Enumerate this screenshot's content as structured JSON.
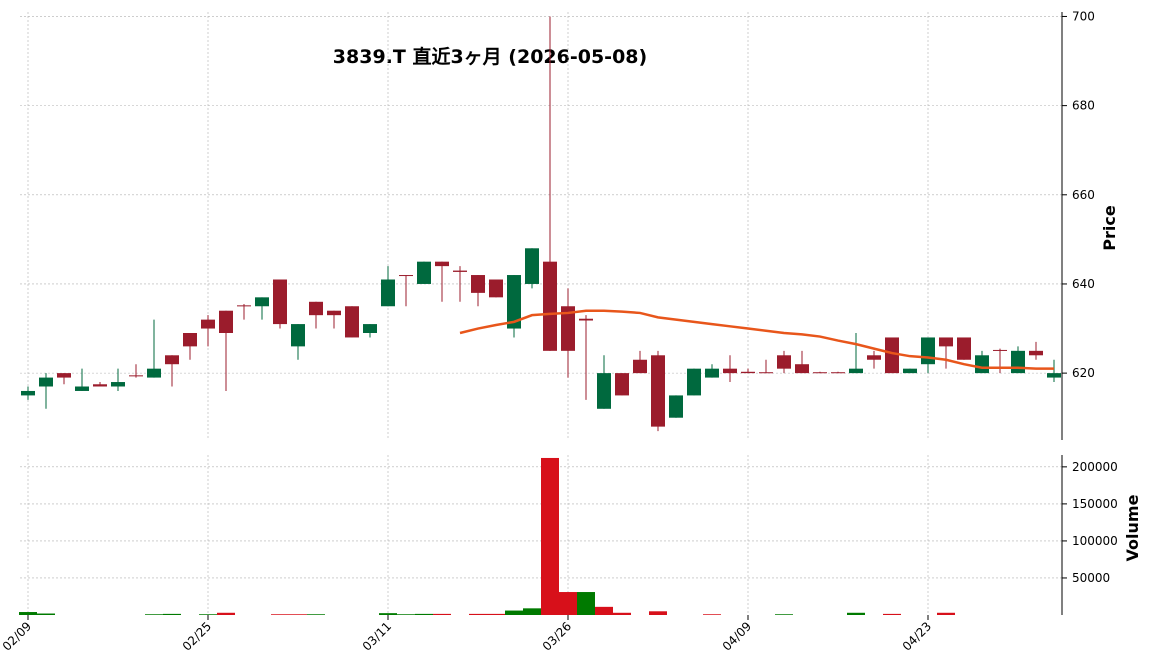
{
  "chart_data": {
    "type": "candlestick",
    "title": "3839.T  直近3ヶ月  (2026-05-08)",
    "categories": [
      "02/09",
      null,
      null,
      null,
      null,
      null,
      null,
      null,
      null,
      null,
      "02/25",
      null,
      null,
      null,
      null,
      null,
      null,
      null,
      null,
      null,
      "03/11",
      null,
      null,
      null,
      null,
      null,
      null,
      null,
      null,
      null,
      "03/26",
      null,
      null,
      null,
      null,
      null,
      null,
      null,
      null,
      null,
      "04/09",
      null,
      null,
      null,
      null,
      null,
      null,
      null,
      null,
      null,
      "04/23",
      null,
      null,
      null,
      null,
      null,
      null,
      null
    ],
    "open": [
      615,
      617,
      620,
      616,
      617.5,
      617,
      619.5,
      619,
      624,
      629,
      632,
      634,
      635.2,
      635,
      641,
      626,
      636,
      634,
      635,
      629,
      635,
      642,
      640,
      645,
      643,
      642,
      641,
      630,
      640,
      645,
      635,
      632.2,
      612,
      620,
      623,
      624,
      610,
      615,
      619,
      621,
      620.3,
      620.2,
      624,
      622,
      620.2,
      620.2,
      620,
      624,
      628,
      620,
      622,
      628,
      628,
      620,
      625.2,
      620,
      625,
      619
    ],
    "high": [
      617,
      620,
      620,
      621,
      618,
      621,
      622,
      632,
      624,
      629,
      633,
      634,
      635.5,
      637,
      641,
      631,
      636,
      634,
      635,
      631,
      644,
      642,
      645,
      645,
      644,
      642,
      641,
      642,
      648,
      700,
      639,
      633,
      624,
      620,
      625,
      625,
      615,
      621,
      622,
      624,
      621,
      623,
      625,
      625,
      620.3,
      620.3,
      629,
      625,
      628,
      621,
      628,
      628,
      628,
      625,
      625.5,
      626,
      627,
      623
    ],
    "low": [
      614,
      612,
      617.5,
      616,
      617,
      616,
      619,
      619,
      617,
      623,
      626,
      616,
      632,
      632,
      630,
      623,
      630,
      630,
      628,
      628,
      635,
      635,
      640,
      636,
      636,
      635,
      637,
      628,
      639,
      625,
      619,
      614,
      612,
      615,
      620,
      607,
      610,
      615,
      619,
      618,
      620,
      620,
      620,
      620,
      620,
      620,
      620,
      621,
      620,
      620,
      620,
      621,
      623,
      620,
      620,
      620,
      623,
      618
    ],
    "close": [
      616,
      619,
      619,
      617,
      617,
      618,
      619.3,
      621,
      622,
      626,
      630,
      629,
      635,
      637,
      631,
      631,
      633,
      633,
      628,
      631,
      641,
      641.8,
      645,
      644,
      642.7,
      638,
      637,
      642,
      648,
      625,
      625,
      631.8,
      620,
      615,
      620,
      608,
      615,
      621,
      621,
      620,
      620,
      620,
      621,
      620,
      620,
      620,
      621,
      623,
      620,
      621,
      628,
      626,
      623,
      624,
      625,
      625,
      624,
      620
    ],
    "up_color": "#00693e",
    "down_color": "#9b1c2c",
    "ylim": [
      605,
      701
    ],
    "yticks": [
      620,
      640,
      660,
      680,
      700
    ],
    "y_label": "Price",
    "grid": true,
    "moving_average": {
      "color": "#e8561b",
      "values": [
        null,
        null,
        null,
        null,
        null,
        null,
        null,
        null,
        null,
        null,
        null,
        null,
        null,
        null,
        null,
        null,
        null,
        null,
        null,
        null,
        null,
        null,
        null,
        null,
        629,
        630,
        630.8,
        631.5,
        633,
        633.3,
        633.5,
        634,
        634,
        633.8,
        633.5,
        632.5,
        632,
        631.5,
        631,
        630.5,
        630,
        629.5,
        629,
        628.7,
        628.2,
        627.3,
        626.5,
        625.5,
        624.5,
        623.8,
        623.5,
        623,
        622,
        621.2,
        621.2,
        621.2,
        621,
        621
      ]
    },
    "volume": {
      "values": [
        4000,
        2000,
        0,
        0,
        0,
        0,
        0,
        1000,
        1500,
        0,
        1000,
        3000,
        0,
        0,
        1000,
        1000,
        1000,
        0,
        0,
        0,
        2500,
        1000,
        1500,
        1500,
        0,
        1500,
        1500,
        6000,
        9000,
        212000,
        31000,
        31000,
        11000,
        3000,
        0,
        5000,
        0,
        0,
        1000,
        0,
        0,
        0,
        1000,
        0,
        0,
        0,
        3000,
        0,
        1500,
        0,
        0,
        3000,
        0,
        0,
        0,
        0,
        0,
        0
      ],
      "up_color": "#007a00",
      "down_color": "#d7101a",
      "ylim": [
        0,
        216000
      ],
      "yticks": [
        50000,
        100000,
        150000,
        200000
      ],
      "y_label": "Volume"
    }
  }
}
